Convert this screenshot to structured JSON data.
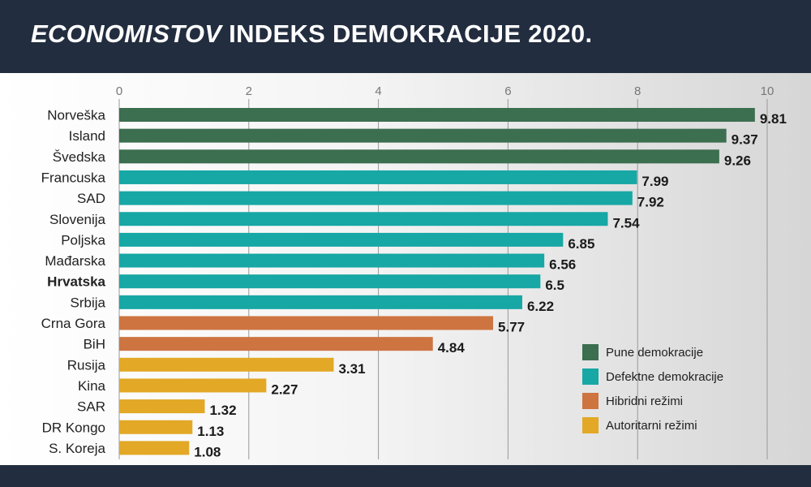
{
  "header": {
    "title_italic": "ECONOMISTOV",
    "title_rest": " INDEKS DEMOKRACIJE 2020."
  },
  "colors": {
    "full": "#3c6e50",
    "flawed": "#17a7a5",
    "hybrid": "#cd7441",
    "authoritarian": "#e2a826",
    "grid": "#999999",
    "label": "#222222"
  },
  "chart_data": {
    "type": "bar",
    "orientation": "horizontal",
    "title": "ECONOMISTOV INDEKS DEMOKRACIJE 2020.",
    "xlim": [
      0,
      10
    ],
    "xticks": [
      0,
      2,
      4,
      6,
      8,
      10
    ],
    "grid": true,
    "legend_position": "bottom-right",
    "categories": [
      "Norveška",
      "Island",
      "Švedska",
      "Francuska",
      "SAD",
      "Slovenija",
      "Poljska",
      "Mađarska",
      "Hrvatska",
      "Srbija",
      "Crna Gora",
      "BiH",
      "Rusija",
      "Kina",
      "SAR",
      "DR Kongo",
      "S. Koreja"
    ],
    "values": [
      9.81,
      9.37,
      9.26,
      7.99,
      7.92,
      7.54,
      6.85,
      6.56,
      6.5,
      6.22,
      5.77,
      4.84,
      3.31,
      2.27,
      1.32,
      1.13,
      1.08
    ],
    "value_labels": [
      "9.81",
      "9.37",
      "9.26",
      "7.99",
      "7.92",
      "7.54",
      "6.85",
      "6.56",
      "6.5",
      "6.22",
      "5.77",
      "4.84",
      "3.31",
      "2.27",
      "1.32",
      "1.13",
      "1.08"
    ],
    "groups": [
      "full",
      "full",
      "full",
      "flawed",
      "flawed",
      "flawed",
      "flawed",
      "flawed",
      "flawed",
      "flawed",
      "hybrid",
      "hybrid",
      "authoritarian",
      "authoritarian",
      "authoritarian",
      "authoritarian",
      "authoritarian"
    ],
    "highlighted": [
      "Hrvatska"
    ],
    "legend": [
      {
        "key": "full",
        "label": "Pune demokracije"
      },
      {
        "key": "flawed",
        "label": "Defektne demokracije"
      },
      {
        "key": "hybrid",
        "label": "Hibridni režimi"
      },
      {
        "key": "authoritarian",
        "label": "Autoritarni režimi"
      }
    ]
  }
}
